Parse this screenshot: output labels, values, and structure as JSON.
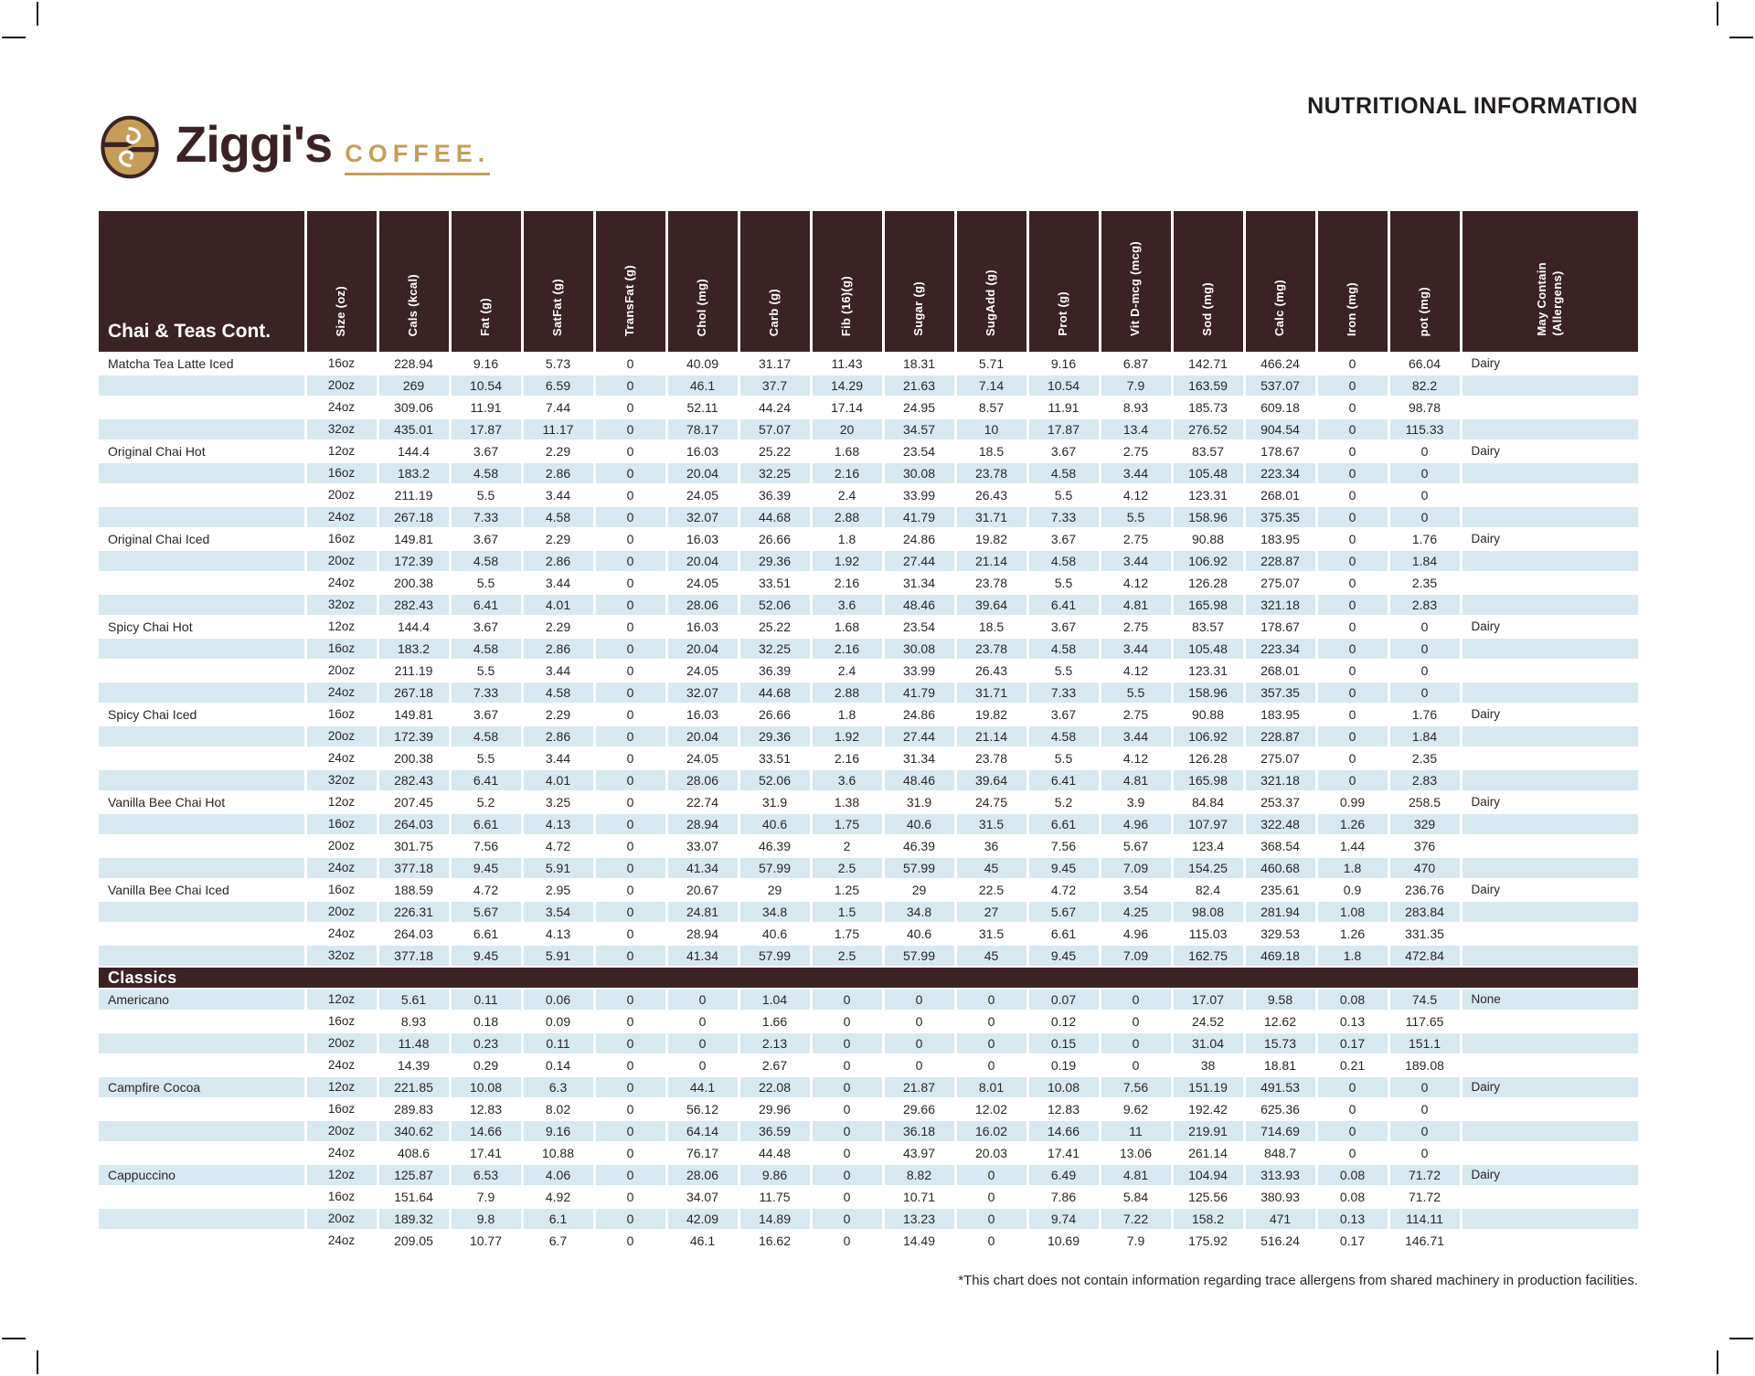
{
  "page": {
    "title": "NUTRITIONAL INFORMATION",
    "footnote": "*This chart does not contain information regarding trace allergens from shared machinery in production facilities."
  },
  "brand": {
    "name": "Ziggi's",
    "word": "COFFEE.",
    "colors": {
      "brown": "#3B2325",
      "tan": "#C69D58",
      "row_blue": "#D8E8F0"
    }
  },
  "table": {
    "columns": [
      "Size (oz)",
      "Cals (kcal)",
      "Fat (g)",
      "SatFat (g)",
      "TransFat (g)",
      "Chol (mg)",
      "Carb (g)",
      "Fib (16)(g)",
      "Sugar (g)",
      "SugAdd (g)",
      "Prot (g)",
      "Vit D-mcg (mcg)",
      "Sod (mg)",
      "Calc (mg)",
      "Iron (mg)",
      "pot (mg)",
      "May Contain\n(Allergens)"
    ],
    "sections": [
      {
        "header": "Chai & Teas Cont.",
        "rows": [
          {
            "name": "Matcha Tea Latte Iced",
            "size": "16oz",
            "values": [
              "228.94",
              "9.16",
              "5.73",
              "0",
              "40.09",
              "31.17",
              "11.43",
              "18.31",
              "5.71",
              "9.16",
              "6.87",
              "142.71",
              "466.24",
              "0",
              "66.04"
            ],
            "allergen": "Dairy"
          },
          {
            "name": "",
            "size": "20oz",
            "values": [
              "269",
              "10.54",
              "6.59",
              "0",
              "46.1",
              "37.7",
              "14.29",
              "21.63",
              "7.14",
              "10.54",
              "7.9",
              "163.59",
              "537.07",
              "0",
              "82.2"
            ],
            "allergen": ""
          },
          {
            "name": "",
            "size": "24oz",
            "values": [
              "309.06",
              "11.91",
              "7.44",
              "0",
              "52.11",
              "44.24",
              "17.14",
              "24.95",
              "8.57",
              "11.91",
              "8.93",
              "185.73",
              "609.18",
              "0",
              "98.78"
            ],
            "allergen": ""
          },
          {
            "name": "",
            "size": "32oz",
            "values": [
              "435.01",
              "17.87",
              "11.17",
              "0",
              "78.17",
              "57.07",
              "20",
              "34.57",
              "10",
              "17.87",
              "13.4",
              "276.52",
              "904.54",
              "0",
              "115.33"
            ],
            "allergen": ""
          },
          {
            "name": "Original Chai Hot",
            "size": "12oz",
            "values": [
              "144.4",
              "3.67",
              "2.29",
              "0",
              "16.03",
              "25.22",
              "1.68",
              "23.54",
              "18.5",
              "3.67",
              "2.75",
              "83.57",
              "178.67",
              "0",
              "0"
            ],
            "allergen": "Dairy"
          },
          {
            "name": "",
            "size": "16oz",
            "values": [
              "183.2",
              "4.58",
              "2.86",
              "0",
              "20.04",
              "32.25",
              "2.16",
              "30.08",
              "23.78",
              "4.58",
              "3.44",
              "105.48",
              "223.34",
              "0",
              "0"
            ],
            "allergen": ""
          },
          {
            "name": "",
            "size": "20oz",
            "values": [
              "211.19",
              "5.5",
              "3.44",
              "0",
              "24.05",
              "36.39",
              "2.4",
              "33.99",
              "26.43",
              "5.5",
              "4.12",
              "123.31",
              "268.01",
              "0",
              "0"
            ],
            "allergen": ""
          },
          {
            "name": "",
            "size": "24oz",
            "values": [
              "267.18",
              "7.33",
              "4.58",
              "0",
              "32.07",
              "44.68",
              "2.88",
              "41.79",
              "31.71",
              "7.33",
              "5.5",
              "158.96",
              "375.35",
              "0",
              "0"
            ],
            "allergen": ""
          },
          {
            "name": "Original Chai Iced",
            "size": "16oz",
            "values": [
              "149.81",
              "3.67",
              "2.29",
              "0",
              "16.03",
              "26.66",
              "1.8",
              "24.86",
              "19.82",
              "3.67",
              "2.75",
              "90.88",
              "183.95",
              "0",
              "1.76"
            ],
            "allergen": "Dairy"
          },
          {
            "name": "",
            "size": "20oz",
            "values": [
              "172.39",
              "4.58",
              "2.86",
              "0",
              "20.04",
              "29.36",
              "1.92",
              "27.44",
              "21.14",
              "4.58",
              "3.44",
              "106.92",
              "228.87",
              "0",
              "1.84"
            ],
            "allergen": ""
          },
          {
            "name": "",
            "size": "24oz",
            "values": [
              "200.38",
              "5.5",
              "3.44",
              "0",
              "24.05",
              "33.51",
              "2.16",
              "31.34",
              "23.78",
              "5.5",
              "4.12",
              "126.28",
              "275.07",
              "0",
              "2.35"
            ],
            "allergen": ""
          },
          {
            "name": "",
            "size": "32oz",
            "values": [
              "282.43",
              "6.41",
              "4.01",
              "0",
              "28.06",
              "52.06",
              "3.6",
              "48.46",
              "39.64",
              "6.41",
              "4.81",
              "165.98",
              "321.18",
              "0",
              "2.83"
            ],
            "allergen": ""
          },
          {
            "name": "Spicy Chai Hot",
            "size": "12oz",
            "values": [
              "144.4",
              "3.67",
              "2.29",
              "0",
              "16.03",
              "25.22",
              "1.68",
              "23.54",
              "18.5",
              "3.67",
              "2.75",
              "83.57",
              "178.67",
              "0",
              "0"
            ],
            "allergen": "Dairy"
          },
          {
            "name": "",
            "size": "16oz",
            "values": [
              "183.2",
              "4.58",
              "2.86",
              "0",
              "20.04",
              "32.25",
              "2.16",
              "30.08",
              "23.78",
              "4.58",
              "3.44",
              "105.48",
              "223.34",
              "0",
              "0"
            ],
            "allergen": ""
          },
          {
            "name": "",
            "size": "20oz",
            "values": [
              "211.19",
              "5.5",
              "3.44",
              "0",
              "24.05",
              "36.39",
              "2.4",
              "33.99",
              "26.43",
              "5.5",
              "4.12",
              "123.31",
              "268.01",
              "0",
              "0"
            ],
            "allergen": ""
          },
          {
            "name": "",
            "size": "24oz",
            "values": [
              "267.18",
              "7.33",
              "4.58",
              "0",
              "32.07",
              "44.68",
              "2.88",
              "41.79",
              "31.71",
              "7.33",
              "5.5",
              "158.96",
              "357.35",
              "0",
              "0"
            ],
            "allergen": ""
          },
          {
            "name": "Spicy Chai Iced",
            "size": "16oz",
            "values": [
              "149.81",
              "3.67",
              "2.29",
              "0",
              "16.03",
              "26.66",
              "1.8",
              "24.86",
              "19.82",
              "3.67",
              "2.75",
              "90.88",
              "183.95",
              "0",
              "1.76"
            ],
            "allergen": "Dairy"
          },
          {
            "name": "",
            "size": "20oz",
            "values": [
              "172.39",
              "4.58",
              "2.86",
              "0",
              "20.04",
              "29.36",
              "1.92",
              "27.44",
              "21.14",
              "4.58",
              "3.44",
              "106.92",
              "228.87",
              "0",
              "1.84"
            ],
            "allergen": ""
          },
          {
            "name": "",
            "size": "24oz",
            "values": [
              "200.38",
              "5.5",
              "3.44",
              "0",
              "24.05",
              "33.51",
              "2.16",
              "31.34",
              "23.78",
              "5.5",
              "4.12",
              "126.28",
              "275.07",
              "0",
              "2.35"
            ],
            "allergen": ""
          },
          {
            "name": "",
            "size": "32oz",
            "values": [
              "282.43",
              "6.41",
              "4.01",
              "0",
              "28.06",
              "52.06",
              "3.6",
              "48.46",
              "39.64",
              "6.41",
              "4.81",
              "165.98",
              "321.18",
              "0",
              "2.83"
            ],
            "allergen": ""
          },
          {
            "name": "Vanilla Bee Chai Hot",
            "size": "12oz",
            "values": [
              "207.45",
              "5.2",
              "3.25",
              "0",
              "22.74",
              "31.9",
              "1.38",
              "31.9",
              "24.75",
              "5.2",
              "3.9",
              "84.84",
              "253.37",
              "0.99",
              "258.5"
            ],
            "allergen": "Dairy"
          },
          {
            "name": "",
            "size": "16oz",
            "values": [
              "264.03",
              "6.61",
              "4.13",
              "0",
              "28.94",
              "40.6",
              "1.75",
              "40.6",
              "31.5",
              "6.61",
              "4.96",
              "107.97",
              "322.48",
              "1.26",
              "329"
            ],
            "allergen": ""
          },
          {
            "name": "",
            "size": "20oz",
            "values": [
              "301.75",
              "7.56",
              "4.72",
              "0",
              "33.07",
              "46.39",
              "2",
              "46.39",
              "36",
              "7.56",
              "5.67",
              "123.4",
              "368.54",
              "1.44",
              "376"
            ],
            "allergen": ""
          },
          {
            "name": "",
            "size": "24oz",
            "values": [
              "377.18",
              "9.45",
              "5.91",
              "0",
              "41.34",
              "57.99",
              "2.5",
              "57.99",
              "45",
              "9.45",
              "7.09",
              "154.25",
              "460.68",
              "1.8",
              "470"
            ],
            "allergen": ""
          },
          {
            "name": "Vanilla Bee Chai Iced",
            "size": "16oz",
            "values": [
              "188.59",
              "4.72",
              "2.95",
              "0",
              "20.67",
              "29",
              "1.25",
              "29",
              "22.5",
              "4.72",
              "3.54",
              "82.4",
              "235.61",
              "0.9",
              "236.76"
            ],
            "allergen": "Dairy"
          },
          {
            "name": "",
            "size": "20oz",
            "values": [
              "226.31",
              "5.67",
              "3.54",
              "0",
              "24.81",
              "34.8",
              "1.5",
              "34.8",
              "27",
              "5.67",
              "4.25",
              "98.08",
              "281.94",
              "1.08",
              "283.84"
            ],
            "allergen": ""
          },
          {
            "name": "",
            "size": "24oz",
            "values": [
              "264.03",
              "6.61",
              "4.13",
              "0",
              "28.94",
              "40.6",
              "1.75",
              "40.6",
              "31.5",
              "6.61",
              "4.96",
              "115.03",
              "329.53",
              "1.26",
              "331.35"
            ],
            "allergen": ""
          },
          {
            "name": "",
            "size": "32oz",
            "values": [
              "377.18",
              "9.45",
              "5.91",
              "0",
              "41.34",
              "57.99",
              "2.5",
              "57.99",
              "45",
              "9.45",
              "7.09",
              "162.75",
              "469.18",
              "1.8",
              "472.84"
            ],
            "allergen": ""
          }
        ]
      },
      {
        "header": "Classics",
        "rows": [
          {
            "name": "Americano",
            "size": "12oz",
            "values": [
              "5.61",
              "0.11",
              "0.06",
              "0",
              "0",
              "1.04",
              "0",
              "0",
              "0",
              "0.07",
              "0",
              "17.07",
              "9.58",
              "0.08",
              "74.5"
            ],
            "allergen": "None"
          },
          {
            "name": "",
            "size": "16oz",
            "values": [
              "8.93",
              "0.18",
              "0.09",
              "0",
              "0",
              "1.66",
              "0",
              "0",
              "0",
              "0.12",
              "0",
              "24.52",
              "12.62",
              "0.13",
              "117.65"
            ],
            "allergen": ""
          },
          {
            "name": "",
            "size": "20oz",
            "values": [
              "11.48",
              "0.23",
              "0.11",
              "0",
              "0",
              "2.13",
              "0",
              "0",
              "0",
              "0.15",
              "0",
              "31.04",
              "15.73",
              "0.17",
              "151.1"
            ],
            "allergen": ""
          },
          {
            "name": "",
            "size": "24oz",
            "values": [
              "14.39",
              "0.29",
              "0.14",
              "0",
              "0",
              "2.67",
              "0",
              "0",
              "0",
              "0.19",
              "0",
              "38",
              "18.81",
              "0.21",
              "189.08"
            ],
            "allergen": ""
          },
          {
            "name": "Campfire Cocoa",
            "size": "12oz",
            "values": [
              "221.85",
              "10.08",
              "6.3",
              "0",
              "44.1",
              "22.08",
              "0",
              "21.87",
              "8.01",
              "10.08",
              "7.56",
              "151.19",
              "491.53",
              "0",
              "0"
            ],
            "allergen": "Dairy"
          },
          {
            "name": "",
            "size": "16oz",
            "values": [
              "289.83",
              "12.83",
              "8.02",
              "0",
              "56.12",
              "29.96",
              "0",
              "29.66",
              "12.02",
              "12.83",
              "9.62",
              "192.42",
              "625.36",
              "0",
              "0"
            ],
            "allergen": ""
          },
          {
            "name": "",
            "size": "20oz",
            "values": [
              "340.62",
              "14.66",
              "9.16",
              "0",
              "64.14",
              "36.59",
              "0",
              "36.18",
              "16.02",
              "14.66",
              "11",
              "219.91",
              "714.69",
              "0",
              "0"
            ],
            "allergen": ""
          },
          {
            "name": "",
            "size": "24oz",
            "values": [
              "408.6",
              "17.41",
              "10.88",
              "0",
              "76.17",
              "44.48",
              "0",
              "43.97",
              "20.03",
              "17.41",
              "13.06",
              "261.14",
              "848.7",
              "0",
              "0"
            ],
            "allergen": ""
          },
          {
            "name": "Cappuccino",
            "size": "12oz",
            "values": [
              "125.87",
              "6.53",
              "4.06",
              "0",
              "28.06",
              "9.86",
              "0",
              "8.82",
              "0",
              "6.49",
              "4.81",
              "104.94",
              "313.93",
              "0.08",
              "71.72"
            ],
            "allergen": "Dairy"
          },
          {
            "name": "",
            "size": "16oz",
            "values": [
              "151.64",
              "7.9",
              "4.92",
              "0",
              "34.07",
              "11.75",
              "0",
              "10.71",
              "0",
              "7.86",
              "5.84",
              "125.56",
              "380.93",
              "0.08",
              "71.72"
            ],
            "allergen": ""
          },
          {
            "name": "",
            "size": "20oz",
            "values": [
              "189.32",
              "9.8",
              "6.1",
              "0",
              "42.09",
              "14.89",
              "0",
              "13.23",
              "0",
              "9.74",
              "7.22",
              "158.2",
              "471",
              "0.13",
              "114.11"
            ],
            "allergen": ""
          },
          {
            "name": "",
            "size": "24oz",
            "values": [
              "209.05",
              "10.77",
              "6.7",
              "0",
              "46.1",
              "16.62",
              "0",
              "14.49",
              "0",
              "10.69",
              "7.9",
              "175.92",
              "516.24",
              "0.17",
              "146.71"
            ],
            "allergen": ""
          }
        ]
      }
    ]
  }
}
